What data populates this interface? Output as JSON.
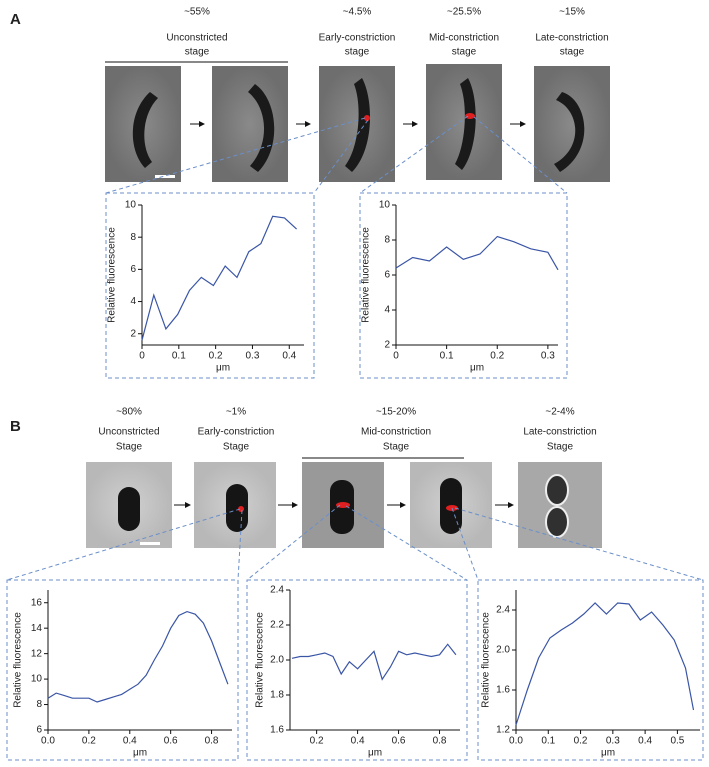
{
  "panel_a": {
    "label": "A",
    "stages": [
      {
        "percent": "~55%",
        "name": [
          "Unconstricted",
          "stage"
        ]
      },
      {
        "percent": "~4.5%",
        "name": [
          "Early-constriction",
          "stage"
        ]
      },
      {
        "percent": "~25.5%",
        "name": [
          "Mid-constriction",
          "stage"
        ]
      },
      {
        "percent": "~15%",
        "name": [
          "Late-constriction",
          "stage"
        ]
      }
    ]
  },
  "panel_b": {
    "label": "B",
    "stages": [
      {
        "percent": "~80%",
        "name": [
          "Unconstricted",
          "Stage"
        ]
      },
      {
        "percent": "~1%",
        "name": [
          "Early-constriction",
          "Stage"
        ]
      },
      {
        "percent": "~15-20%",
        "name": [
          "Mid-constriction",
          "Stage"
        ]
      },
      {
        "percent": "~2-4%",
        "name": [
          "Late-constriction",
          "Stage"
        ]
      }
    ]
  },
  "chart_data": [
    {
      "type": "line",
      "xlabel": "μm",
      "ylabel": "Relative fluorescence",
      "color": "#3a55a6",
      "x": [
        0,
        0.032,
        0.065,
        0.097,
        0.129,
        0.161,
        0.194,
        0.226,
        0.258,
        0.29,
        0.323,
        0.355,
        0.387,
        0.42
      ],
      "values": [
        1.6,
        4.4,
        2.3,
        3.2,
        4.7,
        5.5,
        5.0,
        6.2,
        5.5,
        7.1,
        7.6,
        9.3,
        9.2,
        8.5
      ],
      "xlim": [
        0,
        0.44
      ],
      "ylim": [
        1.3,
        10
      ],
      "xticks": [
        0,
        0.1,
        0.2,
        0.3,
        0.4
      ],
      "yticks": [
        2,
        4,
        6,
        8,
        10
      ]
    },
    {
      "type": "line",
      "xlabel": "μm",
      "ylabel": "Relative fluorescence",
      "color": "#3a55a6",
      "x": [
        0,
        0.033,
        0.066,
        0.1,
        0.133,
        0.166,
        0.2,
        0.233,
        0.266,
        0.3,
        0.32
      ],
      "values": [
        6.4,
        7.0,
        6.8,
        7.6,
        6.9,
        7.2,
        8.2,
        7.9,
        7.5,
        7.3,
        6.3
      ],
      "xlim": [
        0,
        0.32
      ],
      "ylim": [
        2,
        10
      ],
      "xticks": [
        0,
        0.1,
        0.2,
        0.3
      ],
      "yticks": [
        2,
        4,
        6,
        8,
        10
      ]
    },
    {
      "type": "line",
      "xlabel": "μm",
      "ylabel": "Relative fluorescence",
      "color": "#3a55a6",
      "x": [
        0,
        0.04,
        0.08,
        0.12,
        0.16,
        0.2,
        0.24,
        0.28,
        0.32,
        0.36,
        0.4,
        0.44,
        0.48,
        0.52,
        0.56,
        0.6,
        0.64,
        0.68,
        0.72,
        0.76,
        0.8,
        0.84,
        0.88
      ],
      "values": [
        8.5,
        8.9,
        8.7,
        8.5,
        8.5,
        8.5,
        8.2,
        8.4,
        8.6,
        8.8,
        9.2,
        9.6,
        10.3,
        11.5,
        12.6,
        14.0,
        15.0,
        15.3,
        15.1,
        14.4,
        13.0,
        11.3,
        9.6
      ],
      "xlim": [
        0,
        0.9
      ],
      "ylim": [
        6,
        17
      ],
      "xticks": [
        {
          "value": 0,
          "label": "0.0"
        },
        0.2,
        0.4,
        0.6,
        0.8
      ],
      "yticks": [
        6,
        8,
        10,
        12,
        14,
        16
      ]
    },
    {
      "type": "line",
      "xlabel": "μm",
      "ylabel": "Relative fluorescence",
      "color": "#3a55a6",
      "x": [
        0.08,
        0.12,
        0.16,
        0.2,
        0.24,
        0.28,
        0.32,
        0.36,
        0.4,
        0.44,
        0.48,
        0.52,
        0.56,
        0.6,
        0.64,
        0.68,
        0.72,
        0.76,
        0.8,
        0.84,
        0.88
      ],
      "values": [
        2.01,
        2.02,
        2.02,
        2.03,
        2.04,
        2.02,
        1.92,
        1.99,
        1.95,
        2.0,
        2.05,
        1.89,
        1.96,
        2.05,
        2.03,
        2.04,
        2.03,
        2.02,
        2.03,
        2.09,
        2.03
      ],
      "xlim": [
        0.07,
        0.9
      ],
      "ylim": [
        1.6,
        2.4
      ],
      "xticks": [
        0.2,
        0.4,
        0.6,
        0.8
      ],
      "yticks": [
        1.6,
        1.8,
        {
          "value": 2,
          "label": "2.0"
        },
        2.2,
        2.4
      ]
    },
    {
      "type": "line",
      "xlabel": "μm",
      "ylabel": "Relative fluorescence",
      "color": "#3a55a6",
      "x": [
        0,
        0.035,
        0.07,
        0.105,
        0.14,
        0.175,
        0.21,
        0.245,
        0.28,
        0.315,
        0.35,
        0.385,
        0.42,
        0.455,
        0.49,
        0.525,
        0.55
      ],
      "values": [
        1.25,
        1.6,
        1.92,
        2.12,
        2.2,
        2.27,
        2.36,
        2.47,
        2.36,
        2.47,
        2.46,
        2.3,
        2.38,
        2.25,
        2.1,
        1.82,
        1.4
      ],
      "xlim": [
        0,
        0.57
      ],
      "ylim": [
        1.2,
        2.6
      ],
      "xticks": [
        {
          "value": 0,
          "label": "0.0"
        },
        0.1,
        0.2,
        0.3,
        0.4,
        0.5
      ],
      "yticks": [
        1.2,
        1.6,
        {
          "value": 2,
          "label": "2.0"
        },
        2.4
      ]
    }
  ]
}
